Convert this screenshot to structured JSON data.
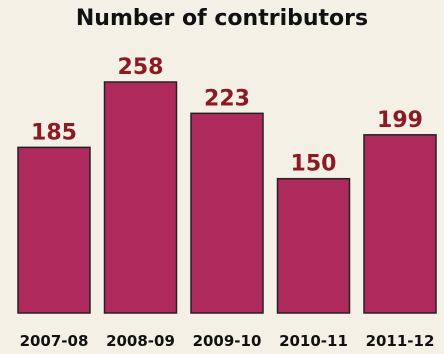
{
  "chart_data": {
    "type": "bar",
    "title": "Number of contributors",
    "categories": [
      "2007-08",
      "2008-09",
      "2009-10",
      "2010-11",
      "2011-12"
    ],
    "values": [
      185,
      258,
      223,
      150,
      199
    ],
    "xlabel": "",
    "ylabel": "",
    "ylim": [
      0,
      258
    ],
    "grid": false,
    "colors": {
      "bar": "#ae2a5c",
      "value_label": "#8b1a22",
      "background": "#f5f0e6"
    }
  }
}
